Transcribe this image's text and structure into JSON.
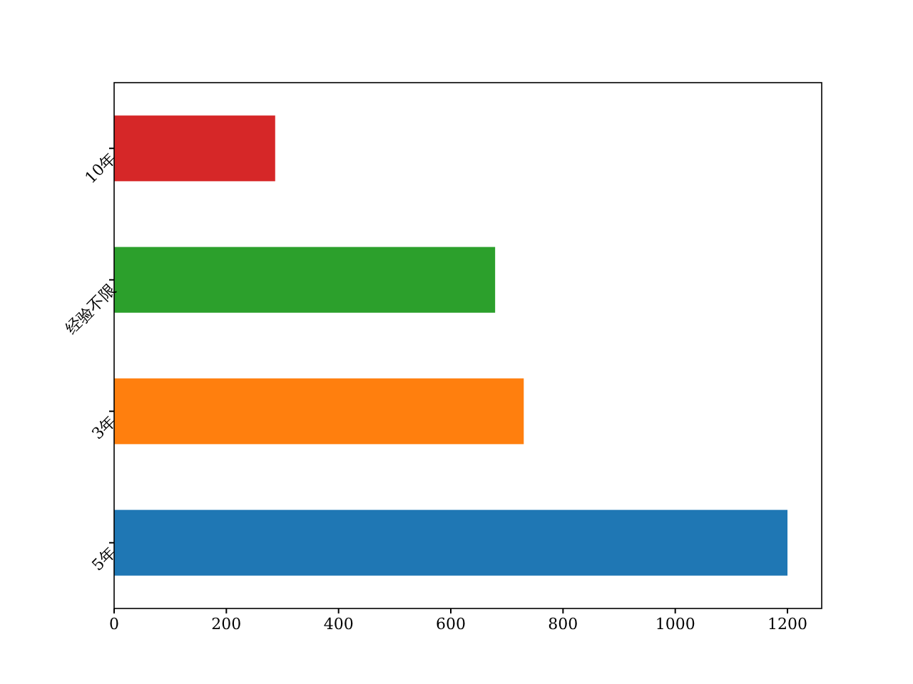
{
  "chart_data": {
    "type": "bar",
    "orientation": "horizontal",
    "categories": [
      "10年",
      "经验不限",
      "3年",
      "5年"
    ],
    "values": [
      287,
      679,
      730,
      1200
    ],
    "colors": [
      "#d62728",
      "#2ca02c",
      "#ff7f0e",
      "#1f77b4"
    ],
    "xlim": [
      0,
      1261
    ],
    "xticks": [
      0,
      200,
      400,
      600,
      800,
      1000,
      1200
    ],
    "grid": false
  }
}
